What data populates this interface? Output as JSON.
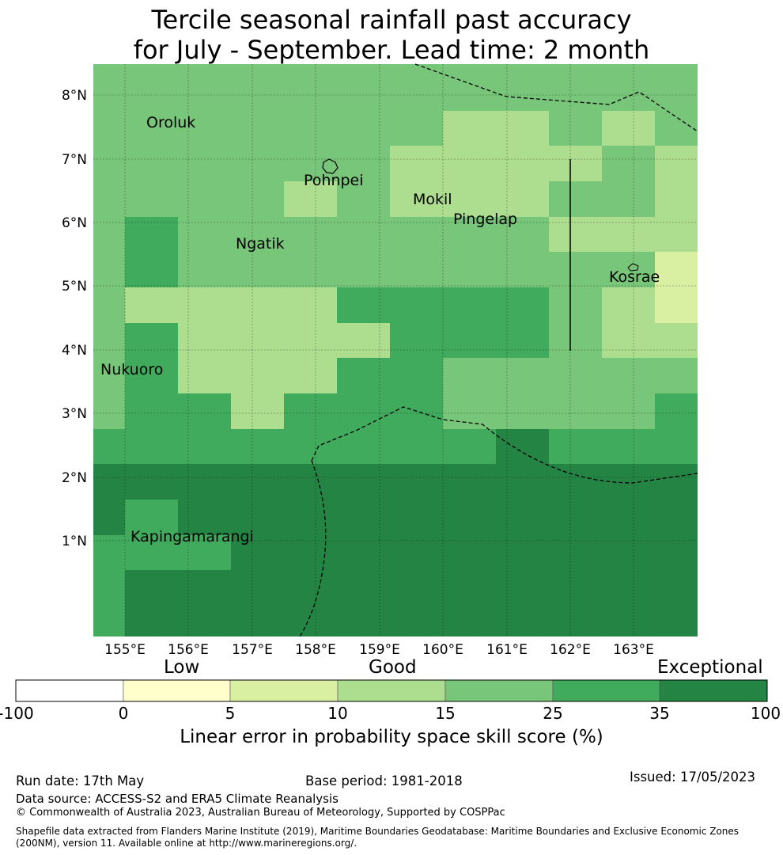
{
  "title": {
    "line1": "Tercile seasonal rainfall past accuracy",
    "line2": "for July - September. Lead time: 2 month"
  },
  "map": {
    "lat_labels": [
      "8°N",
      "7°N",
      "6°N",
      "5°N",
      "4°N",
      "3°N",
      "2°N",
      "1°N"
    ],
    "lon_labels": [
      "155°E",
      "156°E",
      "157°E",
      "158°E",
      "159°E",
      "160°E",
      "161°E",
      "162°E",
      "163°E"
    ],
    "places": [
      "Oroluk",
      "Pohnpei",
      "Mokil",
      "Pingelap",
      "Ngatik",
      "Kosrae",
      "Nukuoro",
      "Kapingamarangi"
    ],
    "boundary_style": "dashed",
    "colors": [
      "#ffffff",
      "#ffffcc",
      "#d9f0a3",
      "#addd8e",
      "#78c679",
      "#41ab5d",
      "#238443"
    ]
  },
  "colorbar": {
    "words": {
      "low": "Low",
      "good": "Good",
      "exceptional": "Exceptional"
    },
    "ticks": [
      "-100",
      "0",
      "5",
      "10",
      "15",
      "25",
      "35",
      "100"
    ],
    "label": "Linear error in probability space skill score (%)"
  },
  "footer": {
    "run_date": "Run date: 17th May",
    "base_period": "Base period: 1981-2018",
    "issued": "Issued: 17/05/2023",
    "data_source": "Data source: ACCESS-S2 and ERA5 Climate Reanalysis",
    "copyright": "© Commonwealth of Australia 2023, Australian Bureau of Meteorology, Supported by COSPPac",
    "shapefile": "Shapefile data extracted from Flanders Marine Institute (2019), Maritime Boundaries Geodatabase: Maritime Boundaries and Exclusive Economic Zones (200NM), version 11. Available online at http://www.marineregions.org/."
  }
}
